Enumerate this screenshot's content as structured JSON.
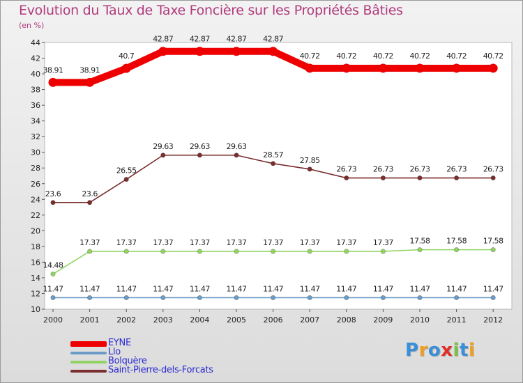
{
  "chart_data": {
    "type": "line",
    "title": "Evolution du Taux de Taxe Foncière sur les Propriétés Bâties",
    "subtitle": "(en %)",
    "x": [
      "2000",
      "2001",
      "2002",
      "2003",
      "2004",
      "2005",
      "2006",
      "2007",
      "2008",
      "2009",
      "2010",
      "2011",
      "2012"
    ],
    "ylim": [
      10,
      44
    ],
    "yticks": [
      10,
      12,
      14,
      16,
      18,
      20,
      22,
      24,
      26,
      28,
      30,
      32,
      34,
      36,
      38,
      40,
      42,
      44
    ],
    "grid": false,
    "series": [
      {
        "name": "EYNE",
        "color": "#ee0000",
        "emphasis": true,
        "values": [
          38.91,
          38.91,
          40.7,
          42.87,
          42.87,
          42.87,
          42.87,
          40.72,
          40.72,
          40.72,
          40.72,
          40.72,
          40.72
        ],
        "labels": [
          "38.91",
          "38.91",
          "40.7",
          "42.87",
          "42.87",
          "42.87",
          "42.87",
          "40.72",
          "40.72",
          "40.72",
          "40.72",
          "40.72",
          "40.72"
        ]
      },
      {
        "name": "Llo",
        "color": "#6c9cc6",
        "emphasis": false,
        "values": [
          11.47,
          11.47,
          11.47,
          11.47,
          11.47,
          11.47,
          11.47,
          11.47,
          11.47,
          11.47,
          11.47,
          11.47,
          11.47
        ],
        "labels": [
          "11.47",
          "11.47",
          "11.47",
          "11.47",
          "11.47",
          "11.47",
          "11.47",
          "11.47",
          "11.47",
          "11.47",
          "11.47",
          "11.47",
          "11.47"
        ]
      },
      {
        "name": "Bolquère",
        "color": "#92d464",
        "emphasis": false,
        "values": [
          14.48,
          17.37,
          17.37,
          17.37,
          17.37,
          17.37,
          17.37,
          17.37,
          17.37,
          17.37,
          17.58,
          17.58,
          17.58
        ],
        "labels": [
          "14.48",
          "17.37",
          "17.37",
          "17.37",
          "17.37",
          "17.37",
          "17.37",
          "17.37",
          "17.37",
          "17.37",
          "17.58",
          "17.58",
          "17.58"
        ]
      },
      {
        "name": "Saint-Pierre-dels-Forcats",
        "color": "#7a2e2e",
        "emphasis": false,
        "values": [
          23.6,
          23.6,
          26.55,
          29.63,
          29.63,
          29.63,
          28.57,
          27.85,
          26.73,
          26.73,
          26.73,
          26.73,
          26.73
        ],
        "labels": [
          "23.6",
          "23.6",
          "26.55",
          "29.63",
          "29.63",
          "29.63",
          "28.57",
          "27.85",
          "26.73",
          "26.73",
          "26.73",
          "26.73",
          "26.73"
        ]
      }
    ]
  },
  "brand": {
    "letters": [
      "P",
      "r",
      "o",
      "x",
      "i",
      "t",
      "i"
    ],
    "colors": [
      "#3a8fd8",
      "#f0a020",
      "#3a8fd8",
      "#e0302a",
      "#7cc242",
      "#3a8fd8",
      "#f0a020"
    ]
  }
}
